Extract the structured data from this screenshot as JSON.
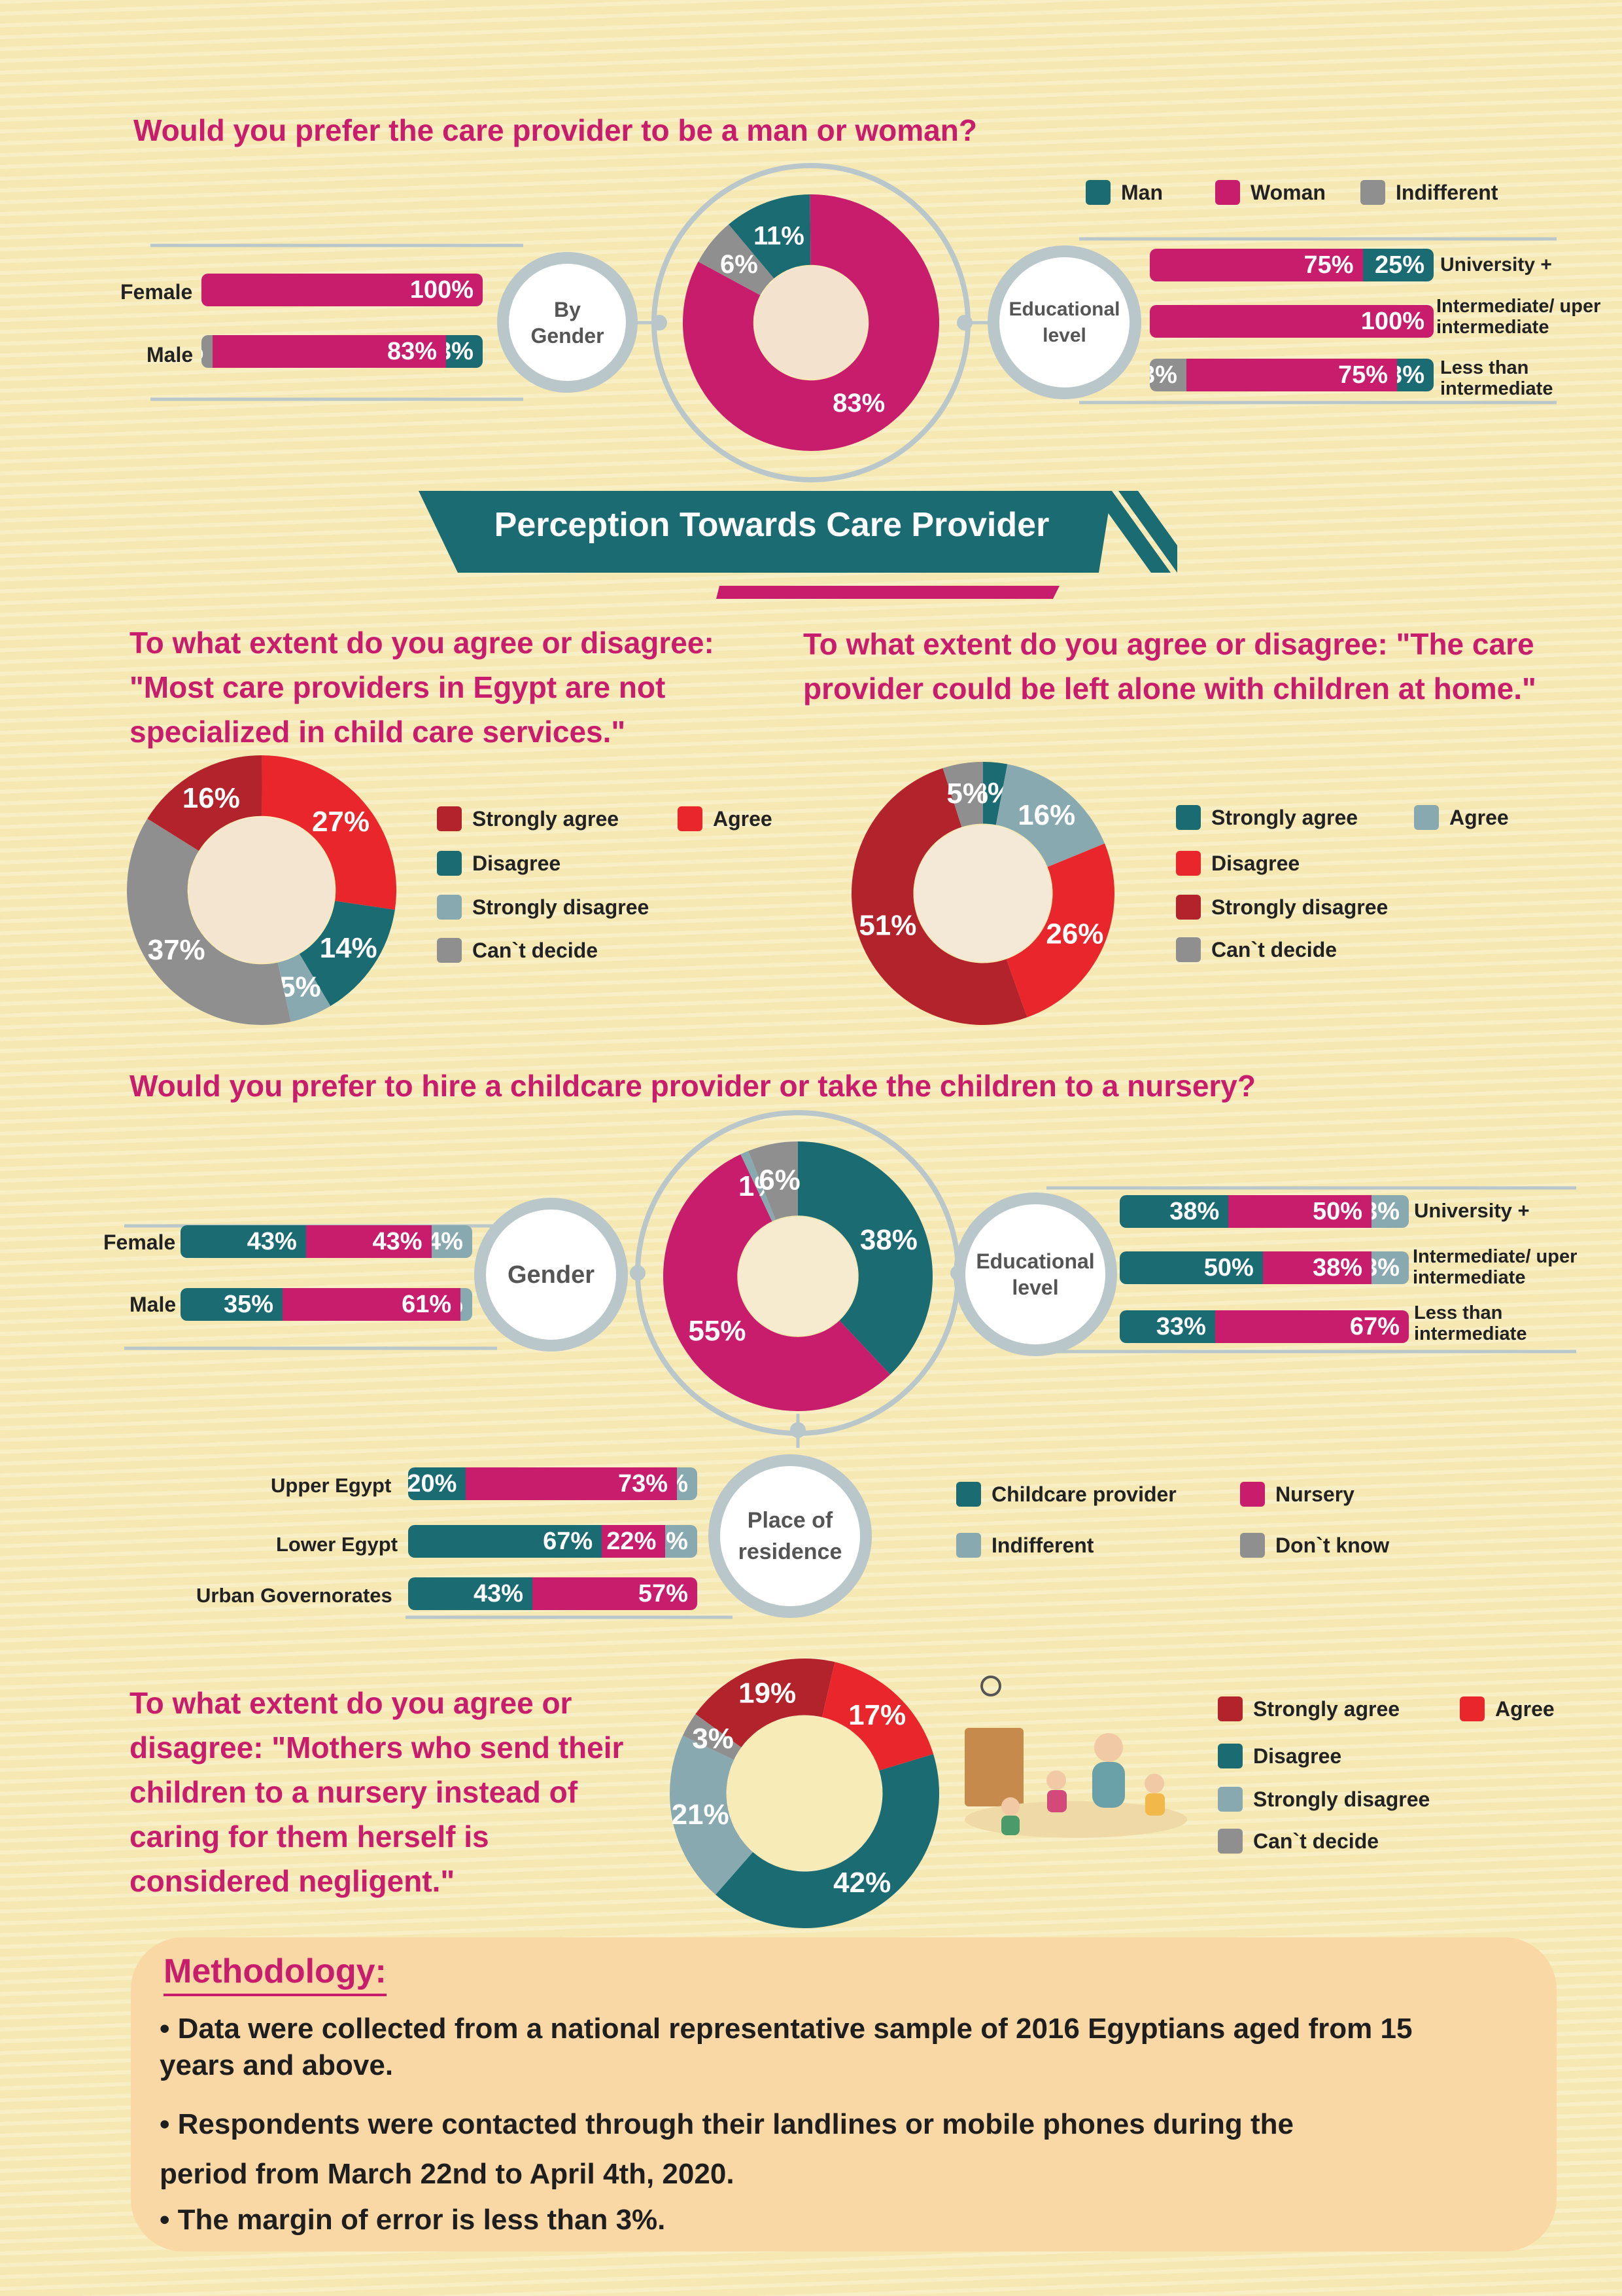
{
  "section_title": "Perception Towards Care Provider",
  "colors": {
    "accent_pink": "#c81d6d",
    "accent_teal": "#1b6b72",
    "man": "#1b6b72",
    "woman": "#c81d6d",
    "indifferent": "#8f8f8f",
    "strongly_agree": "#b3232b",
    "agree": "#e8262b",
    "disagree": "#1b6b72",
    "strongly_disagree": "#89a9b0",
    "cant_decide": "#8f8f8f",
    "childcare": "#1b6b72",
    "nursery": "#c81d6d",
    "dont_know": "#8f8f8f"
  },
  "q1": {
    "question": "Would you prefer the care provider to be a man or woman?",
    "legend": [
      "Man",
      "Woman",
      "Indifferent"
    ],
    "by_gender_hub": [
      "By",
      "Gender"
    ],
    "education_hub": [
      "Educational",
      "level"
    ],
    "gender_labels": [
      "Female",
      "Male"
    ],
    "education_labels": [
      "University +",
      "Intermediate/ uper intermediate",
      "Less than intermediate"
    ]
  },
  "q2": {
    "question": "To what extent do you agree or disagree: \"Most care providers in Egypt are not specialized in child care services.\"",
    "legend": [
      "Strongly agree",
      "Agree",
      "Disagree",
      "Strongly disagree",
      "Can`t decide"
    ]
  },
  "q3": {
    "question": "To what extent do you agree or disagree: \"The care provider could be left alone with children at home.\"",
    "legend": [
      "Strongly agree",
      "Agree",
      "Disagree",
      "Strongly disagree",
      "Can`t decide"
    ]
  },
  "q4": {
    "question": "Would you prefer to hire a childcare provider or take the children to a nursery?",
    "legend": [
      "Childcare provider",
      "Nursery",
      "Indifferent",
      "Don`t know"
    ],
    "gender_hub": "Gender",
    "education_hub": [
      "Educational",
      "level"
    ],
    "residence_hub": [
      "Place of",
      "residence"
    ],
    "gender_labels": [
      "Female",
      "Male"
    ],
    "education_labels": [
      "University +",
      "Intermediate/ uper intermediate",
      "Less than intermediate"
    ],
    "residence_labels": [
      "Upper Egypt",
      "Lower Egypt",
      "Urban Governorates"
    ]
  },
  "q5": {
    "question": "To what extent do you agree or disagree: \"Mothers who send their children to a nursery instead of caring for them herself is considered negligent.\"",
    "legend": [
      "Strongly agree",
      "Agree",
      "Disagree",
      "Strongly disagree",
      "Can`t decide"
    ]
  },
  "methodology": {
    "title": "Methodology:",
    "bullets": [
      "Data were collected from a national representative sample of 2016 Egyptians aged from 15 years and above.",
      "Respondents were contacted through their landlines or mobile phones during the period from March 22nd to April 4th, 2020.",
      "The margin of error is less than 3%."
    ]
  },
  "chart_data": [
    {
      "type": "pie",
      "id": "q1_overall",
      "categories": [
        "Man",
        "Woman",
        "Indifferent"
      ],
      "values": [
        11,
        83,
        6
      ]
    },
    {
      "type": "bar",
      "id": "q1_gender",
      "stacked": true,
      "categories": [
        "Female",
        "Male"
      ],
      "series": [
        {
          "name": "Man",
          "values": [
            0,
            13
          ]
        },
        {
          "name": "Woman",
          "values": [
            100,
            83
          ]
        },
        {
          "name": "Indifferent",
          "values": [
            0,
            4
          ]
        }
      ]
    },
    {
      "type": "bar",
      "id": "q1_education",
      "stacked": true,
      "categories": [
        "University +",
        "Intermediate/ uper intermediate",
        "Less than intermediate"
      ],
      "series": [
        {
          "name": "Man",
          "values": [
            25,
            0,
            13
          ]
        },
        {
          "name": "Woman",
          "values": [
            75,
            100,
            75
          ]
        },
        {
          "name": "Indifferent",
          "values": [
            0,
            0,
            13
          ]
        }
      ]
    },
    {
      "type": "pie",
      "id": "q2",
      "categories": [
        "Strongly agree",
        "Agree",
        "Disagree",
        "Strongly disagree",
        "Can`t decide"
      ],
      "values": [
        16,
        27,
        14,
        5,
        37
      ]
    },
    {
      "type": "pie",
      "id": "q3",
      "categories": [
        "Strongly agree",
        "Agree",
        "Disagree",
        "Strongly disagree",
        "Can`t decide"
      ],
      "values": [
        3,
        16,
        26,
        51,
        5
      ]
    },
    {
      "type": "pie",
      "id": "q4_overall",
      "categories": [
        "Childcare provider",
        "Nursery",
        "Indifferent",
        "Don`t know"
      ],
      "values": [
        38,
        55,
        1,
        6
      ]
    },
    {
      "type": "bar",
      "id": "q4_gender",
      "stacked": true,
      "categories": [
        "Female",
        "Male"
      ],
      "series": [
        {
          "name": "Childcare provider",
          "values": [
            43,
            35
          ]
        },
        {
          "name": "Nursery",
          "values": [
            43,
            61
          ]
        },
        {
          "name": "Indifferent",
          "values": [
            14,
            4
          ]
        }
      ]
    },
    {
      "type": "bar",
      "id": "q4_education",
      "stacked": true,
      "categories": [
        "University +",
        "Intermediate/ uper intermediate",
        "Less than intermediate"
      ],
      "series": [
        {
          "name": "Childcare provider",
          "values": [
            38,
            50,
            33
          ]
        },
        {
          "name": "Nursery",
          "values": [
            50,
            38,
            67
          ]
        },
        {
          "name": "Indifferent",
          "values": [
            13,
            13,
            0
          ]
        }
      ]
    },
    {
      "type": "bar",
      "id": "q4_residence",
      "stacked": true,
      "categories": [
        "Upper Egypt",
        "Lower Egypt",
        "Urban Governorates"
      ],
      "series": [
        {
          "name": "Childcare provider",
          "values": [
            20,
            67,
            43
          ]
        },
        {
          "name": "Nursery",
          "values": [
            73,
            22,
            57
          ]
        },
        {
          "name": "Indifferent",
          "values": [
            7,
            11,
            0
          ]
        }
      ]
    },
    {
      "type": "pie",
      "id": "q5",
      "categories": [
        "Strongly agree",
        "Agree",
        "Disagree",
        "Strongly disagree",
        "Can`t decide"
      ],
      "values": [
        19,
        17,
        42,
        21,
        3
      ]
    }
  ]
}
